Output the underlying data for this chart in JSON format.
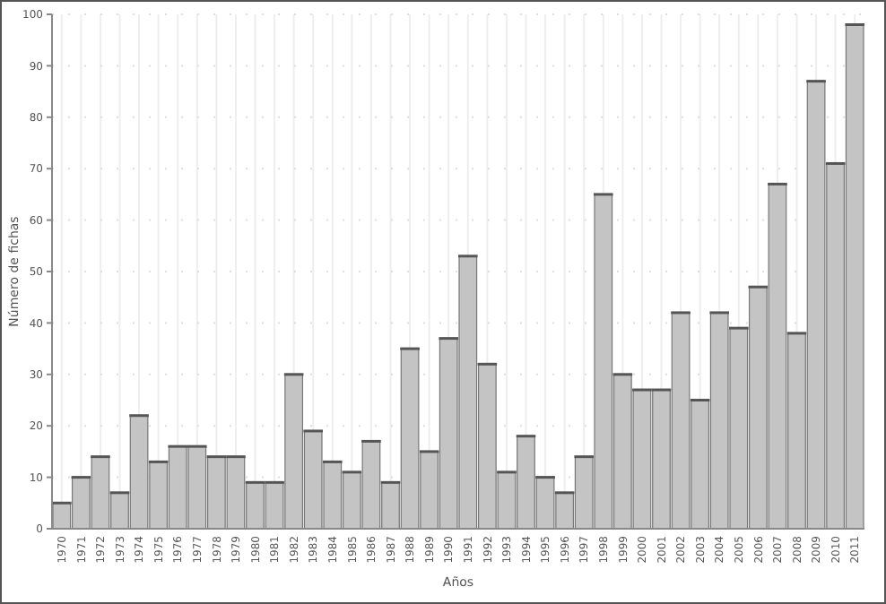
{
  "chart_data": {
    "type": "bar",
    "xlabel": "Años",
    "ylabel": "Número de fichas",
    "categories": [
      "1970",
      "1971",
      "1972",
      "1973",
      "1974",
      "1975",
      "1976",
      "1977",
      "1978",
      "1979",
      "1980",
      "1981",
      "1982",
      "1983",
      "1984",
      "1985",
      "1986",
      "1987",
      "1988",
      "1989",
      "1990",
      "1991",
      "1992",
      "1993",
      "1994",
      "1995",
      "1996",
      "1997",
      "1998",
      "1999",
      "2000",
      "2001",
      "2002",
      "2003",
      "2004",
      "2005",
      "2006",
      "2007",
      "2008",
      "2009",
      "2010",
      "2011"
    ],
    "values": [
      5,
      10,
      14,
      7,
      22,
      13,
      16,
      16,
      14,
      14,
      9,
      9,
      30,
      19,
      13,
      11,
      17,
      9,
      35,
      15,
      37,
      53,
      32,
      11,
      18,
      10,
      7,
      14,
      65,
      30,
      27,
      27,
      42,
      25,
      42,
      39,
      47,
      67,
      38,
      87,
      71,
      98
    ],
    "color": "#c4c4c4",
    "ylim": [
      0,
      100
    ],
    "yticks": [
      0,
      10,
      20,
      30,
      40,
      50,
      60,
      70,
      80,
      90,
      100
    ],
    "grid": true
  }
}
